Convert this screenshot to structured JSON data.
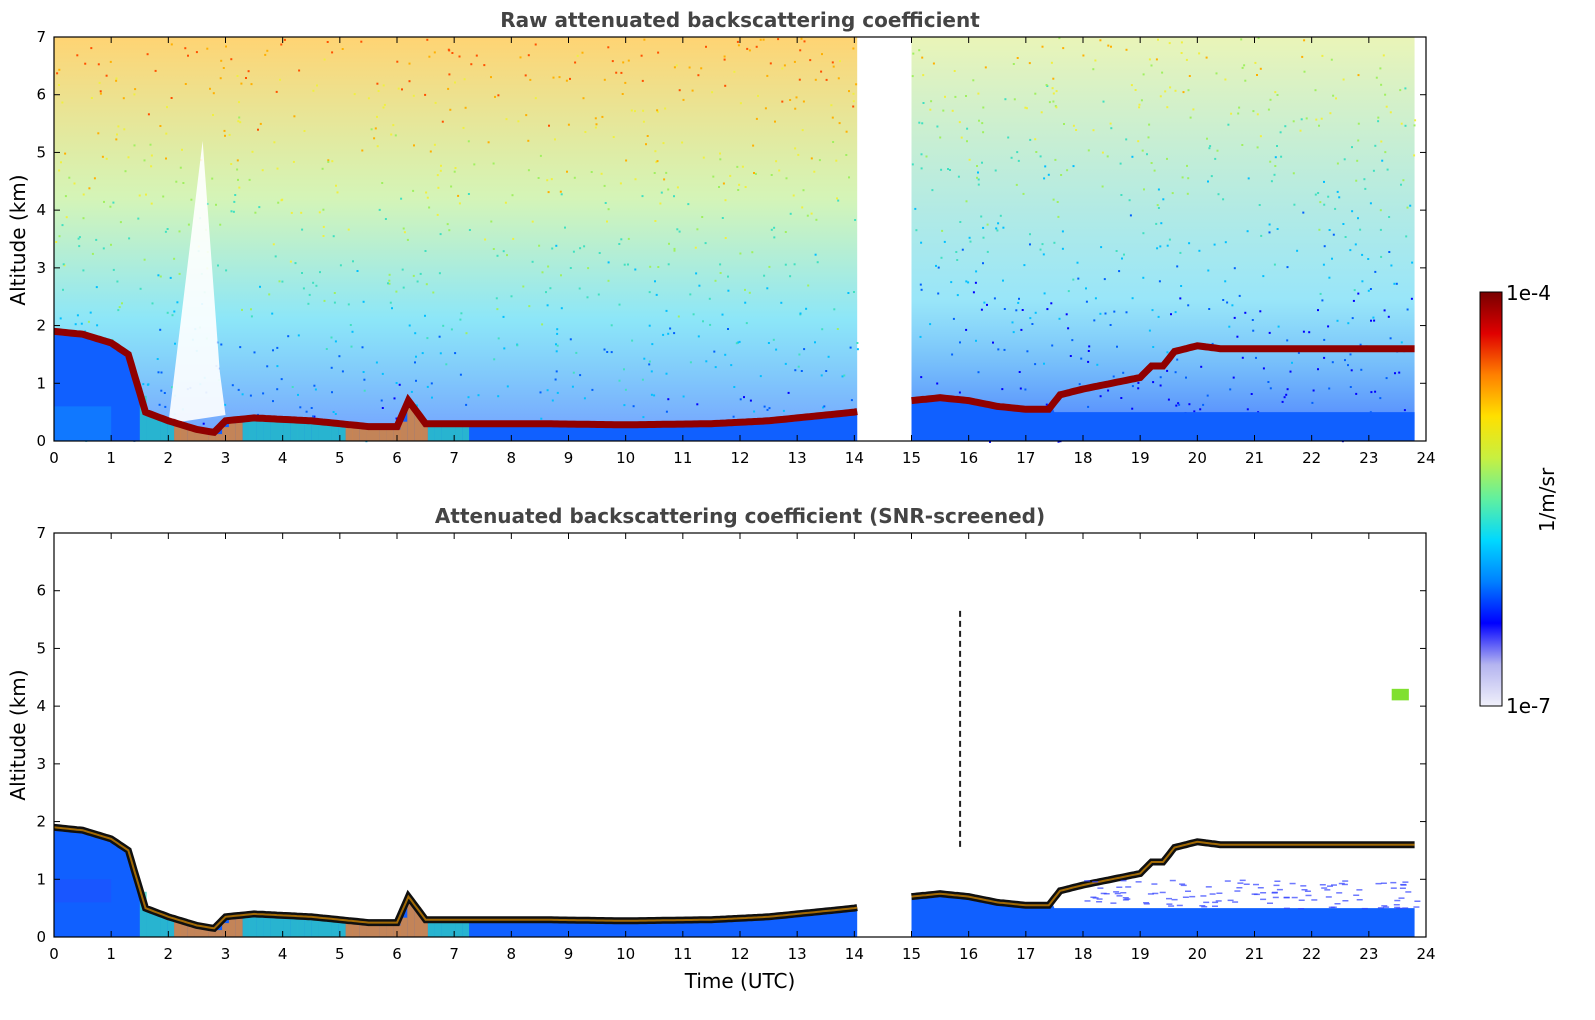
{
  "chart_data": [
    {
      "type": "heatmap",
      "title": "Raw attenuated backscattering coefficient",
      "xlabel": "",
      "ylabel": "Altitude (km)",
      "xlim": [
        0,
        24
      ],
      "ylim": [
        0,
        7
      ],
      "xticks": [
        0,
        1,
        2,
        3,
        4,
        5,
        6,
        7,
        8,
        9,
        10,
        11,
        12,
        13,
        14,
        15,
        16,
        17,
        18,
        19,
        20,
        21,
        22,
        23,
        24
      ],
      "yticks": [
        0,
        1,
        2,
        3,
        4,
        5,
        6,
        7
      ],
      "data_gap_hours": [
        14.05,
        15.0
      ],
      "data_end_hour": 23.8,
      "layer_top_km": {
        "x": [
          0,
          0.5,
          1.0,
          1.3,
          1.6,
          2.0,
          2.5,
          2.8,
          3.0,
          3.5,
          4.5,
          5.5,
          6.0,
          6.2,
          6.5,
          7.5,
          8.5,
          10.0,
          11.5,
          12.5,
          13.5,
          14.0,
          15.0,
          15.5,
          16.0,
          16.5,
          17.0,
          17.4,
          17.6,
          18.0,
          18.5,
          19.0,
          19.2,
          19.4,
          19.6,
          20.0,
          20.4
        ],
        "y": [
          1.9,
          1.85,
          1.7,
          1.5,
          0.5,
          0.35,
          0.2,
          0.15,
          0.35,
          0.4,
          0.35,
          0.25,
          0.25,
          0.7,
          0.3,
          0.3,
          0.3,
          0.28,
          0.3,
          0.35,
          0.45,
          0.5,
          0.7,
          0.75,
          0.7,
          0.6,
          0.55,
          0.55,
          0.8,
          0.9,
          1.0,
          1.1,
          1.3,
          1.3,
          1.55,
          1.65,
          1.6
        ]
      }
    },
    {
      "type": "heatmap",
      "title": "Attenuated backscattering coefficient (SNR-screened)",
      "xlabel": "Time (UTC)",
      "ylabel": "Altitude (km)",
      "xlim": [
        0,
        24
      ],
      "ylim": [
        0,
        7
      ],
      "xticks": [
        0,
        1,
        2,
        3,
        4,
        5,
        6,
        7,
        8,
        9,
        10,
        11,
        12,
        13,
        14,
        15,
        16,
        17,
        18,
        19,
        20,
        21,
        22,
        23,
        24
      ],
      "yticks": [
        0,
        1,
        2,
        3,
        4,
        5,
        6,
        7
      ]
    }
  ],
  "colorbar": {
    "label": "1/m/sr",
    "max_label": "1e-4",
    "min_label": "1e-7",
    "colormap": [
      "#f0f0fa",
      "#b4b4f0",
      "#0000ff",
      "#0080ff",
      "#00d8ff",
      "#60f0a0",
      "#c8f040",
      "#ffe000",
      "#ff8000",
      "#e00000",
      "#780000"
    ]
  }
}
